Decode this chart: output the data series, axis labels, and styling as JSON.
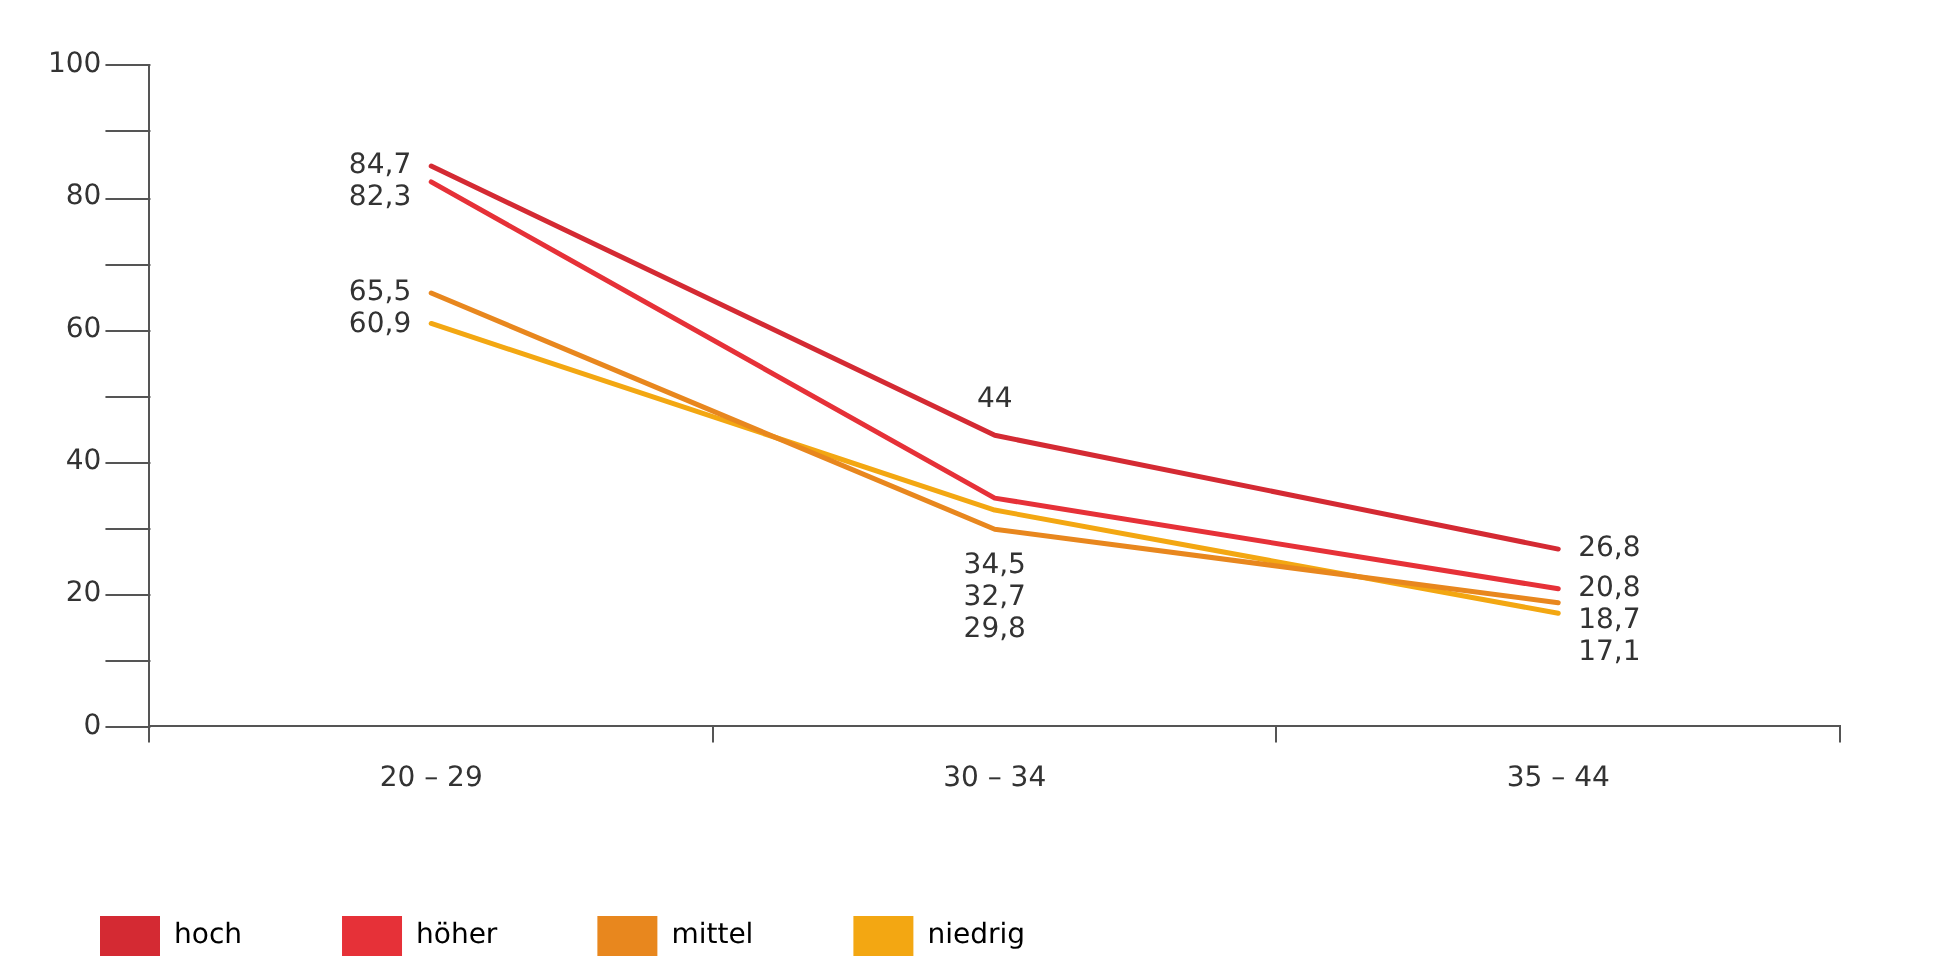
{
  "chart_data": {
    "type": "line",
    "categories": [
      "20 – 29",
      "30 – 34",
      "35 – 44"
    ],
    "series": [
      {
        "name": "hoch",
        "color": "#d42a33",
        "values": [
          84.7,
          44,
          26.8
        ],
        "value_labels": [
          "84,7",
          "44",
          "26,8"
        ]
      },
      {
        "name": "höher",
        "color": "#e63138",
        "values": [
          82.3,
          34.5,
          20.8
        ],
        "value_labels": [
          "82,3",
          "34,5",
          "20,8"
        ]
      },
      {
        "name": "mittel",
        "color": "#e8871e",
        "values": [
          65.5,
          29.8,
          18.7
        ],
        "value_labels": [
          "65,5",
          "29,8",
          "18,7"
        ]
      },
      {
        "name": "niedrig",
        "color": "#f3a712",
        "values": [
          60.9,
          32.7,
          17.1
        ],
        "value_labels": [
          "60,9",
          "32,7",
          "17,1"
        ]
      }
    ],
    "ylim": [
      0,
      100
    ],
    "yticks": [
      0,
      20,
      40,
      60,
      80,
      100
    ],
    "grid": false,
    "legend": "bottom",
    "marker": "none",
    "line_style": "solid"
  }
}
